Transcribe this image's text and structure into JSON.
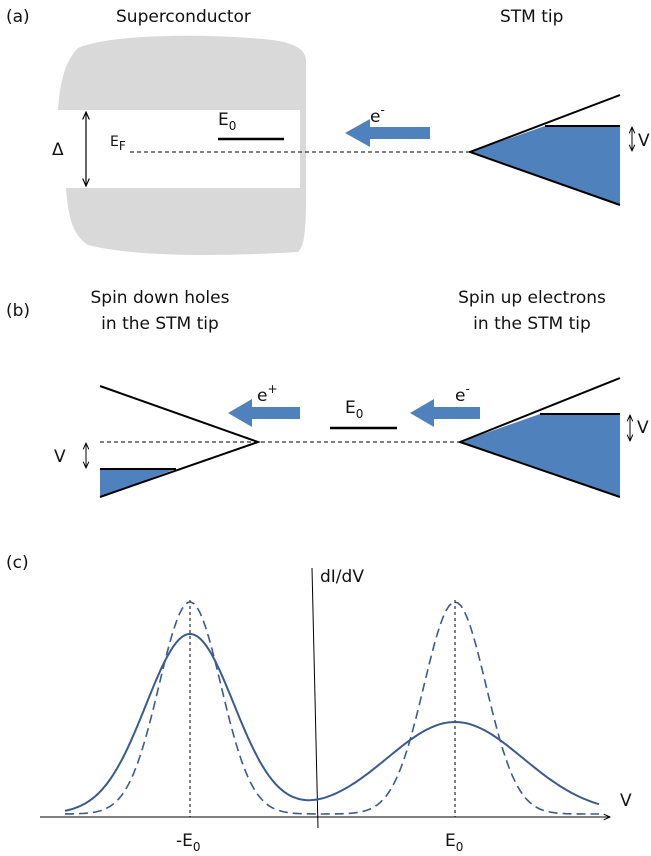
{
  "panel_a": {
    "label": "(a)",
    "superconductor": "Superconductor",
    "stm_tip": "STM tip",
    "gap": "Δ",
    "fermi": {
      "base": "E",
      "sub": "F"
    },
    "level": {
      "base": "E",
      "sub": "0"
    },
    "electron": {
      "base": "e",
      "sup": "-"
    },
    "bias": "V"
  },
  "panel_b": {
    "label": "(b)",
    "left_title": [
      "Spin down holes",
      "in the STM tip"
    ],
    "right_title": [
      "Spin up electrons",
      "in the STM tip"
    ],
    "level": {
      "base": "E",
      "sub": "0"
    },
    "hole": {
      "base": "e",
      "sup": "+"
    },
    "electron": {
      "base": "e",
      "sup": "-"
    },
    "bias_left": "V",
    "bias_right": "V"
  },
  "panel_c": {
    "label": "(c)",
    "y_axis": "dI/dV",
    "x_axis": "V",
    "left_peak": {
      "base": "-E",
      "sub": "0"
    },
    "right_peak": {
      "base": "E",
      "sub": "0"
    }
  }
}
